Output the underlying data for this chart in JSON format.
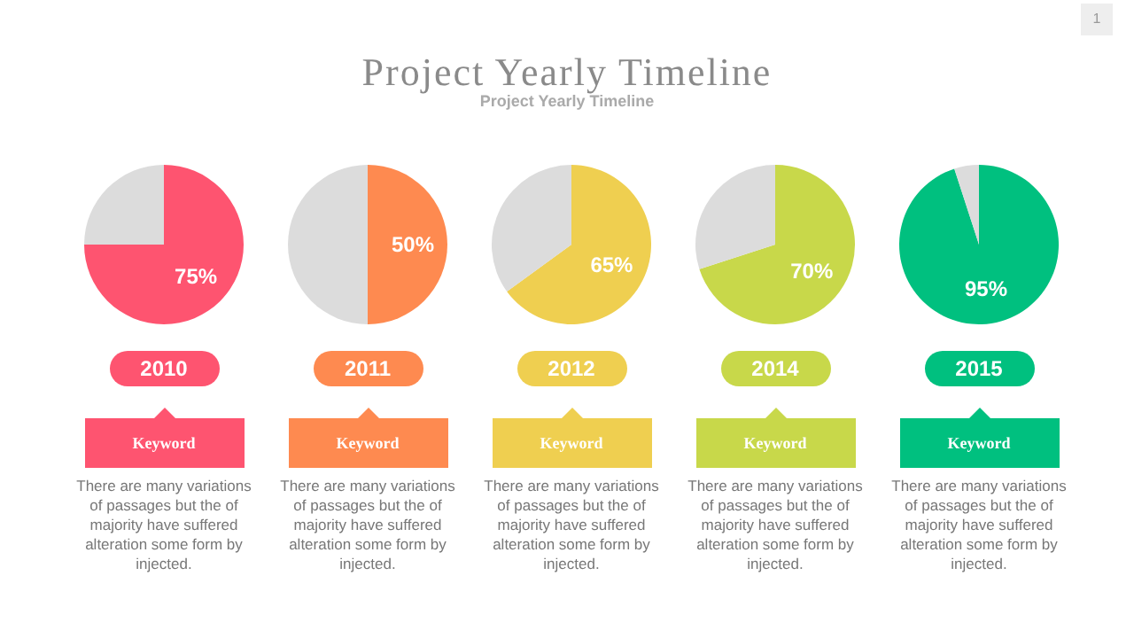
{
  "chart_data": [
    {
      "type": "other",
      "title": "Project Yearly Timeline",
      "subtitle": "Project Yearly Timeline",
      "annotations": [
        "1"
      ]
    },
    {
      "type": "pie",
      "title": "2010",
      "categories": [
        null,
        null
      ],
      "values": [
        75,
        25
      ],
      "colors": [
        "#fe5470",
        "#dcdcdc"
      ],
      "value_labels": [
        "75%",
        null
      ],
      "annotations": [
        "Keyword",
        "There are many variations of passages but the of majority have suffered alteration some form by injected."
      ]
    },
    {
      "type": "pie",
      "title": "2011",
      "categories": [
        null,
        null
      ],
      "values": [
        50,
        50
      ],
      "colors": [
        "#fe8a50",
        "#dcdcdc"
      ],
      "value_labels": [
        "50%",
        null
      ],
      "annotations": [
        "Keyword",
        "There are many variations of passages but the of majority have suffered alteration some form by injected."
      ]
    },
    {
      "type": "pie",
      "title": "2012",
      "categories": [
        null,
        null
      ],
      "values": [
        65,
        35
      ],
      "colors": [
        "#efcf50",
        "#dcdcdc"
      ],
      "value_labels": [
        "65%",
        null
      ],
      "annotations": [
        "Keyword",
        "There are many variations of passages but the of majority have suffered alteration some form by injected."
      ]
    },
    {
      "type": "pie",
      "title": "2014",
      "categories": [
        null,
        null
      ],
      "values": [
        70,
        30
      ],
      "colors": [
        "#c8d84a",
        "#dcdcdc"
      ],
      "value_labels": [
        "70%",
        null
      ],
      "annotations": [
        "Keyword",
        "There are many variations of passages but the of majority have suffered alteration some form by injected."
      ]
    },
    {
      "type": "pie",
      "title": "2015",
      "categories": [
        null,
        null
      ],
      "values": [
        95,
        5
      ],
      "colors": [
        "#00c07f",
        "#dcdcdc"
      ],
      "value_labels": [
        "95%",
        null
      ],
      "annotations": [
        "Keyword",
        "There are many variations of passages but the of majority have suffered alteration some form by injected."
      ]
    }
  ]
}
